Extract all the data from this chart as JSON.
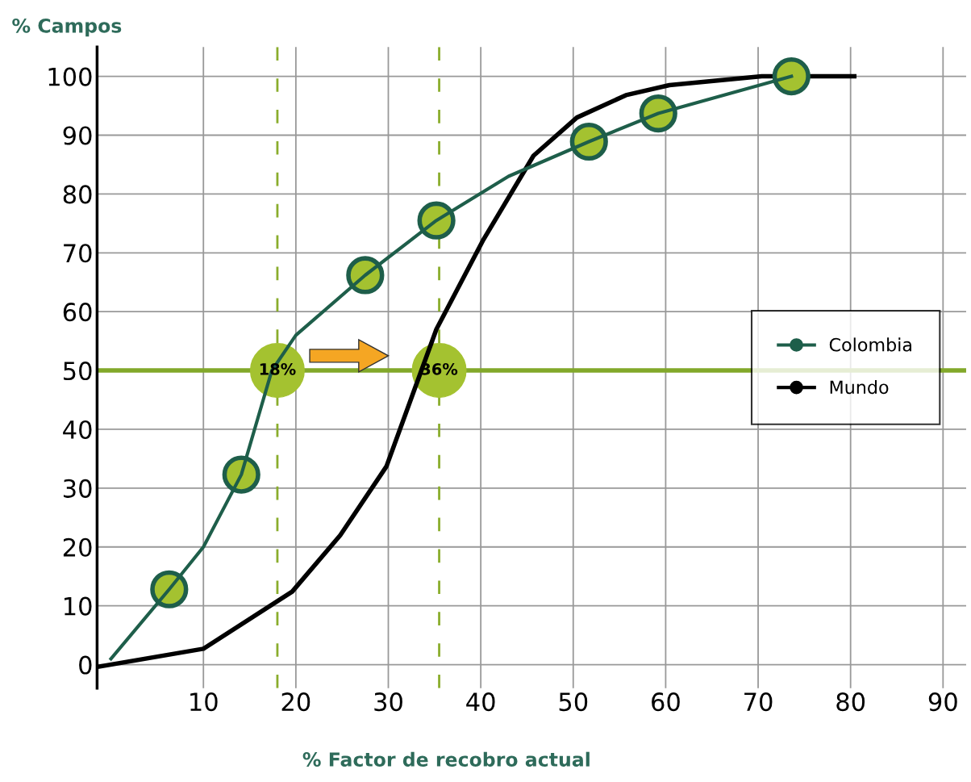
{
  "chart_data": {
    "type": "line",
    "ylabel": "% Campos",
    "xlabel": "% Factor de recobro actual",
    "xlim": [
      -1.5,
      92.5
    ],
    "ylim": [
      -4,
      105
    ],
    "xticks": [
      10,
      20,
      30,
      40,
      50,
      60,
      70,
      80,
      90
    ],
    "yticks": [
      0,
      10,
      20,
      30,
      40,
      50,
      60,
      70,
      80,
      90,
      100
    ],
    "grid": true,
    "legend": "center right",
    "series": [
      {
        "color": "#1e5e4a",
        "x": [
          0,
          6.3,
          10,
          14.1,
          17.4,
          20,
          27.5,
          35.2,
          43,
          51.7,
          59.2,
          73.6
        ],
        "values": [
          1,
          12.8,
          20,
          32.3,
          50,
          56,
          66.2,
          75.5,
          83,
          88.9,
          93.7,
          100
        ]
      },
      {
        "type": "scatter",
        "name": "Colombia",
        "color": "#1e5e4a",
        "marker": "circle",
        "x": [
          6.3,
          14.1,
          27.5,
          35.2,
          51.7,
          59.2,
          73.6
        ],
        "values": [
          12.8,
          32.3,
          66.2,
          75.5,
          88.9,
          93.7,
          100
        ]
      },
      {
        "name": "Mundo",
        "color": "#000000",
        "x": [
          -1.5,
          10,
          19.6,
          24.8,
          29.8,
          35.2,
          40.2,
          45.7,
          50.4,
          55.7,
          60.4,
          70.4,
          80.4
        ],
        "values": [
          -0.4,
          2.7,
          12.4,
          22,
          33.7,
          57,
          72,
          86.5,
          93,
          96.8,
          98.5,
          100,
          100
        ]
      }
    ],
    "ref_lines": [
      {
        "axis": "x",
        "value": 18,
        "color": "#8aad2c",
        "line_style": "dashed"
      },
      {
        "axis": "x",
        "value": 35.5,
        "color": "#8aad2c",
        "line_style": "dashed"
      },
      {
        "axis": "y",
        "value": 50,
        "color": "#82a82a",
        "line_style": "solid"
      }
    ],
    "annotations": [
      {
        "text": "18%",
        "x": 18,
        "y": 50
      },
      {
        "text": "36%",
        "x": 35.5,
        "y": 50
      }
    ]
  }
}
